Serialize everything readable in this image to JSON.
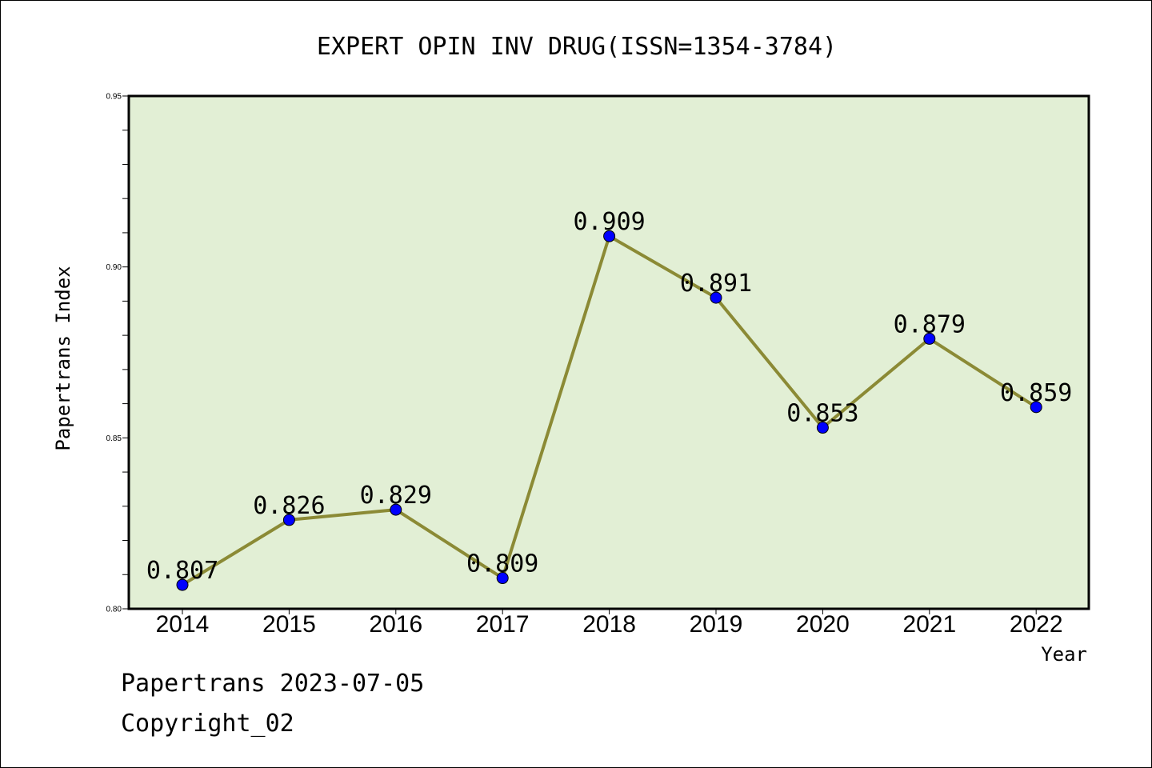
{
  "chart_data": {
    "type": "line",
    "title": "EXPERT OPIN INV DRUG(ISSN=1354-3784)",
    "xlabel": "Year",
    "ylabel": "Papertrans Index",
    "categories": [
      "2014",
      "2015",
      "2016",
      "2017",
      "2018",
      "2019",
      "2020",
      "2021",
      "2022"
    ],
    "series": [
      {
        "values": [
          0.807,
          0.826,
          0.829,
          0.809,
          0.909,
          0.891,
          0.853,
          0.879,
          0.859
        ],
        "data_labels": [
          "0.807",
          "0.826",
          "0.829",
          "0.809",
          "0.909",
          "0.891",
          "0.853",
          "0.879",
          "0.859"
        ]
      }
    ],
    "ylim": [
      0.8,
      0.95
    ],
    "y_ticks": [
      "0.80",
      "0.85",
      "0.90",
      "0.95"
    ],
    "grid": false,
    "colors": {
      "plot_background": "#e2efd5",
      "line": "#8b8a35",
      "marker": "#0000ff"
    }
  },
  "footer": {
    "line1": "Papertrans 2023-07-05",
    "line2": "Copyright_02"
  }
}
